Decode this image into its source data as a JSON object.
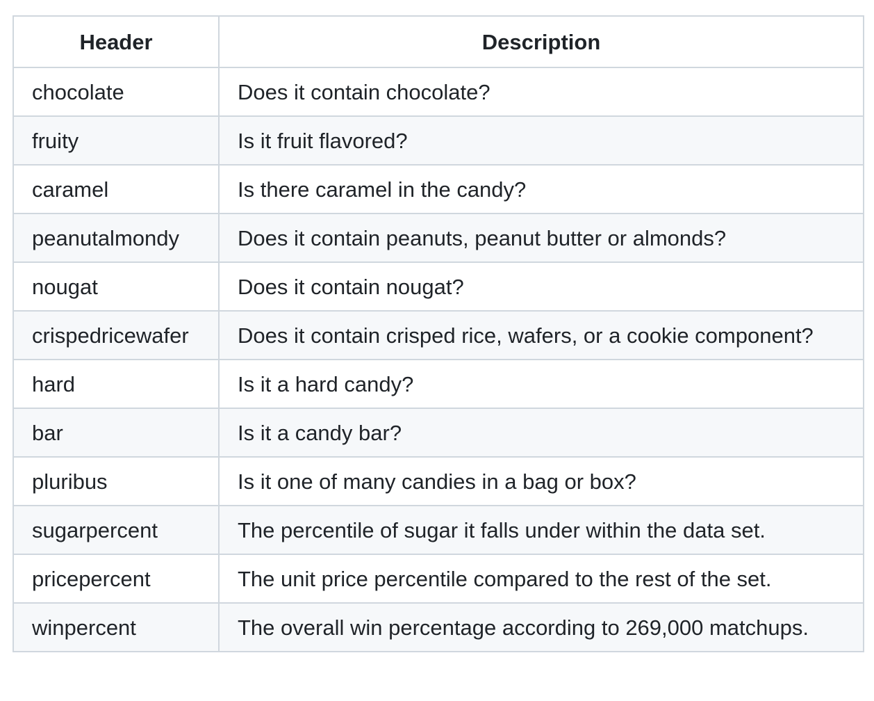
{
  "table": {
    "headers": [
      "Header",
      "Description"
    ],
    "rows": [
      {
        "header": "chocolate",
        "description": "Does it contain chocolate?"
      },
      {
        "header": "fruity",
        "description": "Is it fruit flavored?"
      },
      {
        "header": "caramel",
        "description": "Is there caramel in the candy?"
      },
      {
        "header": "peanutalmondy",
        "description": "Does it contain peanuts, peanut butter or almonds?"
      },
      {
        "header": "nougat",
        "description": "Does it contain nougat?"
      },
      {
        "header": "crispedricewafer",
        "description": "Does it contain crisped rice, wafers, or a cookie component?"
      },
      {
        "header": "hard",
        "description": "Is it a hard candy?"
      },
      {
        "header": "bar",
        "description": "Is it a candy bar?"
      },
      {
        "header": "pluribus",
        "description": "Is it one of many candies in a bag or box?"
      },
      {
        "header": "sugarpercent",
        "description": "The percentile of sugar it falls under within the data set."
      },
      {
        "header": "pricepercent",
        "description": "The unit price percentile compared to the rest of the set."
      },
      {
        "header": "winpercent",
        "description": "The overall win percentage according to 269,000 matchups."
      }
    ]
  },
  "colors": {
    "border": "#d0d7de",
    "stripe": "#f6f8fa",
    "text": "#1f2328"
  }
}
